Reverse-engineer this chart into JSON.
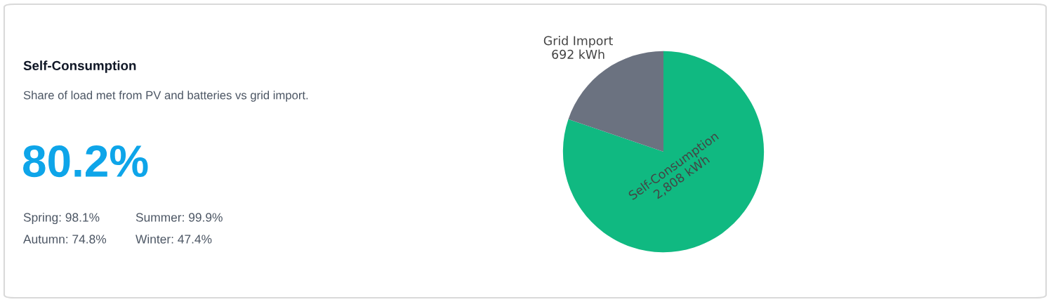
{
  "chart_data": [
    {
      "type": "other",
      "title": "Self-Consumption",
      "subtitle": "Share of load met from PV and batteries vs grid import.",
      "annotations": [
        "80.2%",
        "Spring: 98.1%",
        "Summer: 99.9%",
        "Autumn: 74.8%",
        "Winter: 47.4%"
      ]
    },
    {
      "type": "pie",
      "categories": [
        "Self-Consumption",
        "Grid Import"
      ],
      "values": [
        2808,
        692
      ],
      "colors": [
        "#10b981",
        "#6b7280"
      ],
      "value_labels": [
        "2,808 kWh",
        "692 kWh"
      ],
      "legend": false
    }
  ]
}
